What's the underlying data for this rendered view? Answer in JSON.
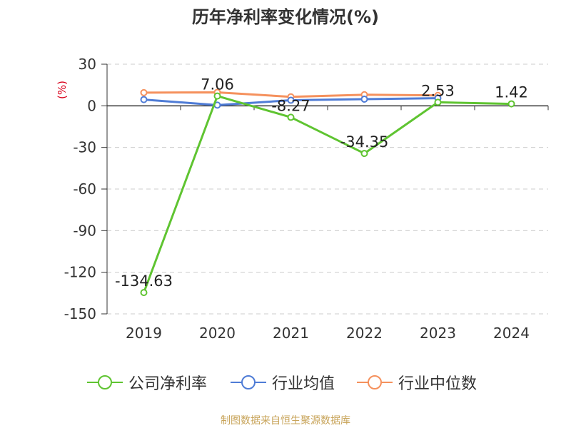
{
  "chart_data": {
    "type": "line",
    "title": "历年净利率变化情况(%)",
    "ylabel": "(%)",
    "categories": [
      "2019",
      "2020",
      "2021",
      "2022",
      "2023",
      "2024"
    ],
    "ylim": [
      -150,
      30
    ],
    "yticks": [
      30,
      0,
      -30,
      -60,
      -90,
      -120,
      -150
    ],
    "grid": true,
    "legend_position": "bottom",
    "series": [
      {
        "name": "公司净利率",
        "color": "#5fc431",
        "values": [
          -134.63,
          7.06,
          -8.27,
          -34.35,
          2.53,
          1.42
        ],
        "labels": [
          "-134.63",
          "7.06",
          "-8.27",
          "-34.35",
          "2.53",
          "1.42"
        ]
      },
      {
        "name": "行业均值",
        "color": "#4f7cd6",
        "values": [
          4.5,
          0.5,
          4.0,
          4.8,
          5.5,
          null
        ]
      },
      {
        "name": "行业中位数",
        "color": "#f5915d",
        "values": [
          9.5,
          9.7,
          6.5,
          8.0,
          7.5,
          null
        ]
      }
    ]
  },
  "source": "制图数据来自恒生聚源数据库"
}
